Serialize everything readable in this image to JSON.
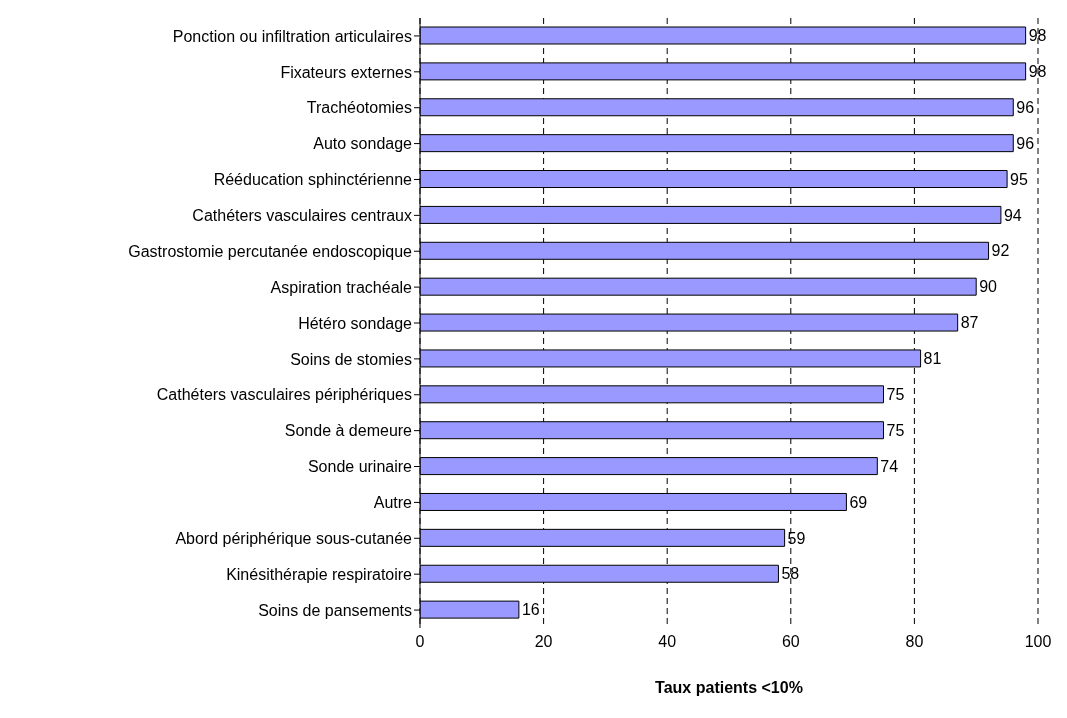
{
  "chart_data": {
    "type": "bar",
    "orientation": "horizontal",
    "xlabel": "Taux patients <10%",
    "categories": [
      "Ponction ou infiltration articulaires",
      "Fixateurs externes",
      "Trachéotomies",
      "Auto sondage",
      "Rééducation sphinctérienne",
      "Cathéters vasculaires centraux",
      "Gastrostomie percutanée endoscopique",
      "Aspiration trachéale",
      "Hétéro sondage",
      "Soins de stomies",
      "Cathéters vasculaires périphériques",
      "Sonde à demeure",
      "Sonde urinaire",
      "Autre",
      "Abord périphérique sous-cutanée",
      "Kinésithérapie respiratoire",
      "Soins de pansements"
    ],
    "values": [
      98,
      98,
      96,
      96,
      95,
      94,
      92,
      90,
      87,
      81,
      75,
      75,
      74,
      69,
      59,
      58,
      16
    ],
    "color": "#9999ff",
    "xlim": [
      0,
      100
    ],
    "xticks": [
      0,
      20,
      40,
      60,
      80,
      100
    ],
    "grid": "x",
    "data_labels": true
  }
}
